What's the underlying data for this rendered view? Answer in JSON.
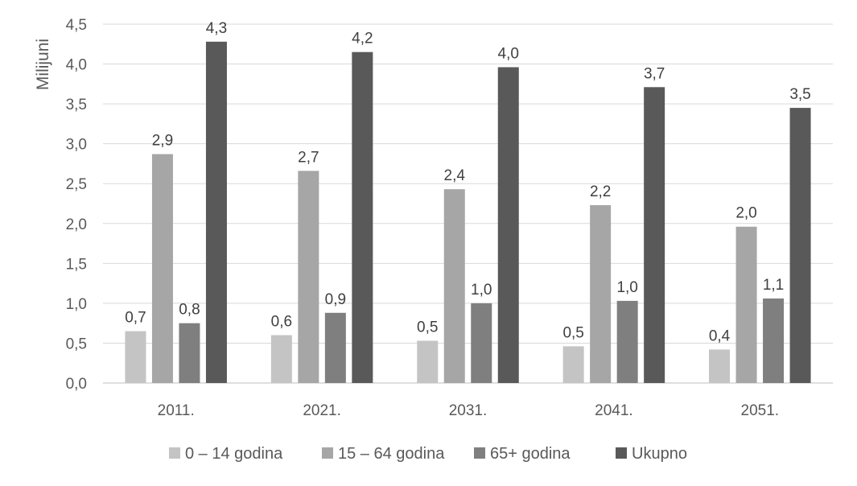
{
  "chart_data": {
    "type": "bar",
    "ylabel": "Milijuni",
    "categories": [
      "2011.",
      "2021.",
      "2031.",
      "2041.",
      "2051."
    ],
    "ylim": [
      0,
      4.5
    ],
    "yticks": [
      "0,0",
      "0,5",
      "1,0",
      "1,5",
      "2,0",
      "2,5",
      "3,0",
      "3,5",
      "4,0",
      "4,5"
    ],
    "grid": true,
    "legend_position": "bottom",
    "series": [
      {
        "name": "0 – 14 godina",
        "color": "#c4c4c4",
        "values": [
          0.65,
          0.6,
          0.53,
          0.46,
          0.42
        ],
        "labels": [
          "0,7",
          "0,6",
          "0,5",
          "0,5",
          "0,4"
        ]
      },
      {
        "name": "15 – 64 godina",
        "color": "#a6a6a6",
        "values": [
          2.87,
          2.66,
          2.43,
          2.23,
          1.96
        ],
        "labels": [
          "2,9",
          "2,7",
          "2,4",
          "2,2",
          "2,0"
        ]
      },
      {
        "name": "65+ godina",
        "color": "#7f7f7f",
        "values": [
          0.75,
          0.88,
          1.0,
          1.03,
          1.06
        ],
        "labels": [
          "0,8",
          "0,9",
          "1,0",
          "1,0",
          "1,1"
        ]
      },
      {
        "name": "Ukupno",
        "color": "#595959",
        "values": [
          4.28,
          4.15,
          3.96,
          3.71,
          3.45
        ],
        "labels": [
          "4,3",
          "4,2",
          "4,0",
          "3,7",
          "3,5"
        ]
      }
    ]
  }
}
